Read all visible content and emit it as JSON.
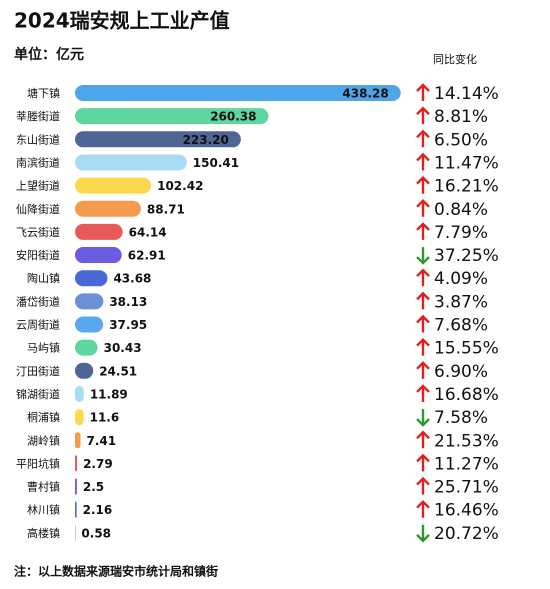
{
  "chart_data": {
    "type": "bar",
    "orientation": "horizontal",
    "title": "2024瑞安规上工业产值",
    "subtitle": "单位：亿元",
    "change_header": "同比变化",
    "note": "注：以上数据来源瑞安市统计局和镇街",
    "xlim": [
      0,
      440
    ],
    "categories": [
      "塘下镇",
      "莘塍街道",
      "东山街道",
      "南滨街道",
      "上望街道",
      "仙降街道",
      "飞云街道",
      "安阳街道",
      "陶山镇",
      "潘岱街道",
      "云周街道",
      "马屿镇",
      "汀田街道",
      "锦湖街道",
      "桐浦镇",
      "湖岭镇",
      "平阳坑镇",
      "曹村镇",
      "林川镇",
      "高楼镇"
    ],
    "values": [
      438.28,
      260.38,
      223.2,
      150.41,
      102.42,
      88.71,
      64.14,
      62.91,
      43.68,
      38.13,
      37.95,
      30.43,
      24.51,
      11.89,
      11.6,
      7.41,
      2.79,
      2.5,
      2.16,
      0.58
    ],
    "value_labels": [
      "438.28",
      "260.38",
      "223.20",
      "150.41",
      "102.42",
      "88.71",
      "64.14",
      "62.91",
      "43.68",
      "38.13",
      "37.95",
      "30.43",
      "24.51",
      "11.89",
      "11.6",
      "7.41",
      "2.79",
      "2.5",
      "2.16",
      "0.58"
    ],
    "colors": [
      "#4da6ea",
      "#5fd6a0",
      "#4f6596",
      "#a8dcf4",
      "#fcd84e",
      "#f59a4e",
      "#e85a5a",
      "#6a5de0",
      "#4a67d6",
      "#6c8fd8",
      "#5aa8f0",
      "#5fd6a0",
      "#4f6596",
      "#a8dcf4",
      "#fcd84e",
      "#f59a4e",
      "#e85a5a",
      "#6a5de0",
      "#4a67d6",
      "#6c8fd8"
    ],
    "change_labels": [
      "14.14%",
      "8.81%",
      "6.50%",
      "11.47%",
      "16.21%",
      "0.84%",
      "7.79%",
      "37.25%",
      "4.09%",
      "3.87%",
      "7.68%",
      "15.55%",
      "6.90%",
      "16.68%",
      "7.58%",
      "21.53%",
      "11.27%",
      "25.71%",
      "16.46%",
      "20.72%"
    ],
    "change_direction": [
      "up",
      "up",
      "up",
      "up",
      "up",
      "up",
      "up",
      "down",
      "up",
      "up",
      "up",
      "up",
      "up",
      "up",
      "down",
      "up",
      "up",
      "up",
      "up",
      "down"
    ],
    "direction_colors": {
      "up": "#e01f1f",
      "down": "#2b9a2b"
    }
  }
}
